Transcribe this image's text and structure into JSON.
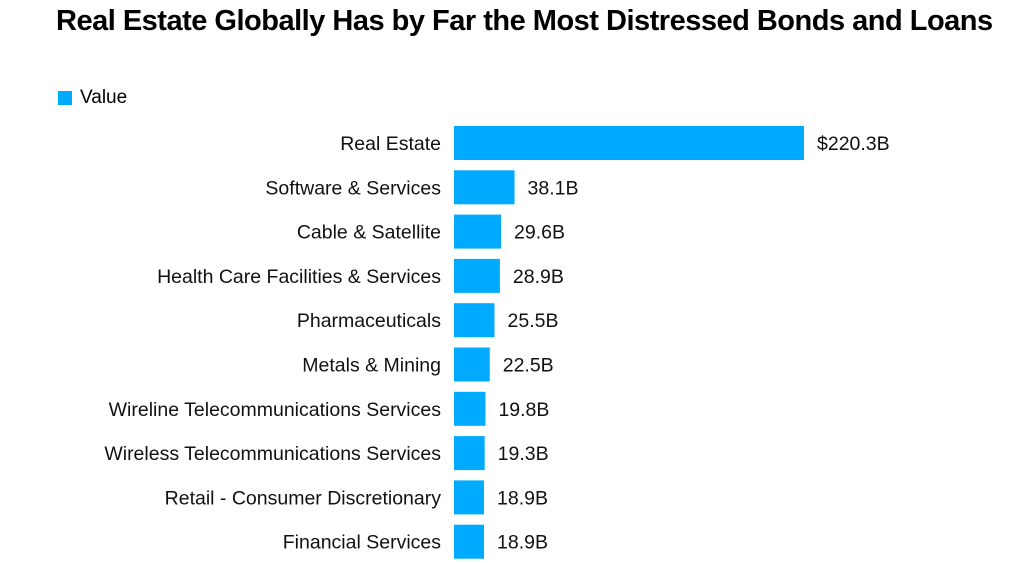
{
  "chart_data": {
    "type": "bar",
    "orientation": "horizontal",
    "title": "Real Estate Globally Has by Far the Most Distressed Bonds and Loans",
    "legend": [
      {
        "name": "Value",
        "color": "#00aaff"
      }
    ],
    "legend_position": "top-left",
    "xlabel": "",
    "ylabel": "",
    "grid": false,
    "xlim": [
      0,
      220.3
    ],
    "categories": [
      "Real Estate",
      "Software & Services",
      "Cable & Satellite",
      "Health Care Facilities & Services",
      "Pharmaceuticals",
      "Metals & Mining",
      "Wireline Telecommunications Services",
      "Wireless Telecommunications Services",
      "Retail - Consumer Discretionary",
      "Financial Services"
    ],
    "series": [
      {
        "name": "Value",
        "color": "#00aaff",
        "values": [
          220.3,
          38.1,
          29.6,
          28.9,
          25.5,
          22.5,
          19.8,
          19.3,
          18.9,
          18.9
        ],
        "data_labels": [
          "$220.3B",
          "38.1B",
          "29.6B",
          "28.9B",
          "25.5B",
          "22.5B",
          "19.8B",
          "19.3B",
          "18.9B",
          "18.9B"
        ]
      }
    ]
  }
}
